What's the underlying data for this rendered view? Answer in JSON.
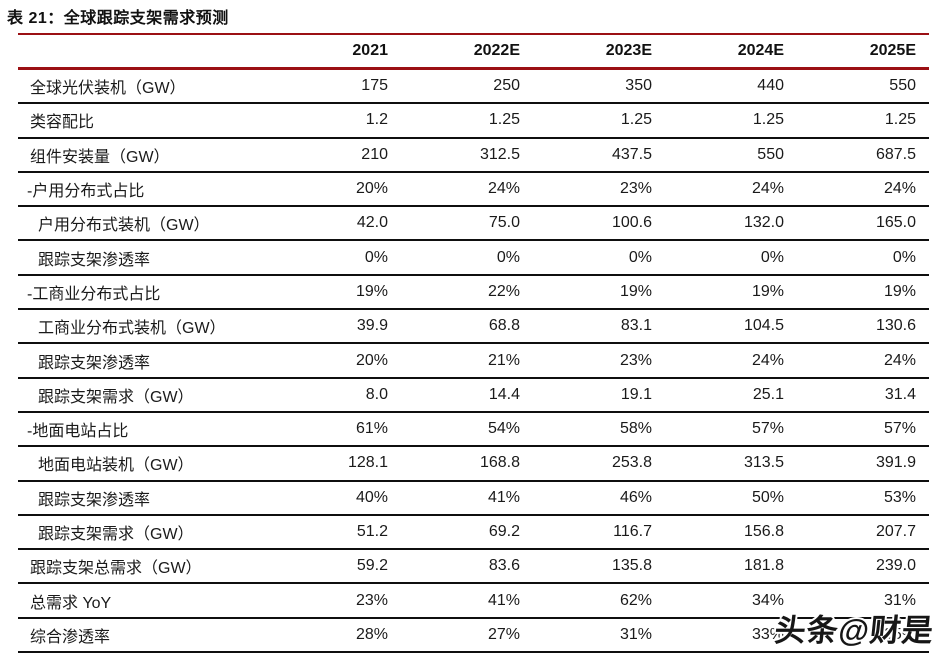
{
  "title": "表 21：全球跟踪支架需求预测",
  "watermark": "头条@财是",
  "colors": {
    "accent_red": "#9b1014",
    "row_line": "#0f0f0f",
    "text": "#1a1a1a"
  },
  "table": {
    "columns": [
      "2021",
      "2022E",
      "2023E",
      "2024E",
      "2025E"
    ],
    "rows": [
      {
        "label": "全球光伏装机（GW）",
        "indent": "base",
        "values": [
          "175",
          "250",
          "350",
          "440",
          "550"
        ]
      },
      {
        "label": "类容配比",
        "indent": "base",
        "values": [
          "1.2",
          "1.25",
          "1.25",
          "1.25",
          "1.25"
        ]
      },
      {
        "label": "组件安装量（GW）",
        "indent": "base",
        "values": [
          "210",
          "312.5",
          "437.5",
          "550",
          "687.5"
        ]
      },
      {
        "label": "-户用分布式占比",
        "indent": "dash",
        "values": [
          "20%",
          "24%",
          "23%",
          "24%",
          "24%"
        ]
      },
      {
        "label": "户用分布式装机（GW）",
        "indent": "sub",
        "values": [
          "42.0",
          "75.0",
          "100.6",
          "132.0",
          "165.0"
        ]
      },
      {
        "label": "跟踪支架渗透率",
        "indent": "sub",
        "values": [
          "0%",
          "0%",
          "0%",
          "0%",
          "0%"
        ]
      },
      {
        "label": "-工商业分布式占比",
        "indent": "dash",
        "values": [
          "19%",
          "22%",
          "19%",
          "19%",
          "19%"
        ]
      },
      {
        "label": "工商业分布式装机（GW）",
        "indent": "sub",
        "values": [
          "39.9",
          "68.8",
          "83.1",
          "104.5",
          "130.6"
        ]
      },
      {
        "label": "跟踪支架渗透率",
        "indent": "sub",
        "values": [
          "20%",
          "21%",
          "23%",
          "24%",
          "24%"
        ]
      },
      {
        "label": "跟踪支架需求（GW）",
        "indent": "sub",
        "values": [
          "8.0",
          "14.4",
          "19.1",
          "25.1",
          "31.4"
        ]
      },
      {
        "label": "-地面电站占比",
        "indent": "dash",
        "values": [
          "61%",
          "54%",
          "58%",
          "57%",
          "57%"
        ]
      },
      {
        "label": "地面电站装机（GW）",
        "indent": "sub",
        "values": [
          "128.1",
          "168.8",
          "253.8",
          "313.5",
          "391.9"
        ]
      },
      {
        "label": "跟踪支架渗透率",
        "indent": "sub",
        "values": [
          "40%",
          "41%",
          "46%",
          "50%",
          "53%"
        ]
      },
      {
        "label": "跟踪支架需求（GW）",
        "indent": "sub",
        "values": [
          "51.2",
          "69.2",
          "116.7",
          "156.8",
          "207.7"
        ]
      },
      {
        "label": "跟踪支架总需求（GW）",
        "indent": "base",
        "values": [
          "59.2",
          "83.6",
          "135.8",
          "181.8",
          "239.0"
        ]
      },
      {
        "label": "总需求 YoY",
        "indent": "base",
        "values": [
          "23%",
          "41%",
          "62%",
          "34%",
          "31%"
        ]
      },
      {
        "label": "综合渗透率",
        "indent": "base",
        "values": [
          "28%",
          "27%",
          "31%",
          "33%",
          "35%"
        ]
      }
    ]
  }
}
